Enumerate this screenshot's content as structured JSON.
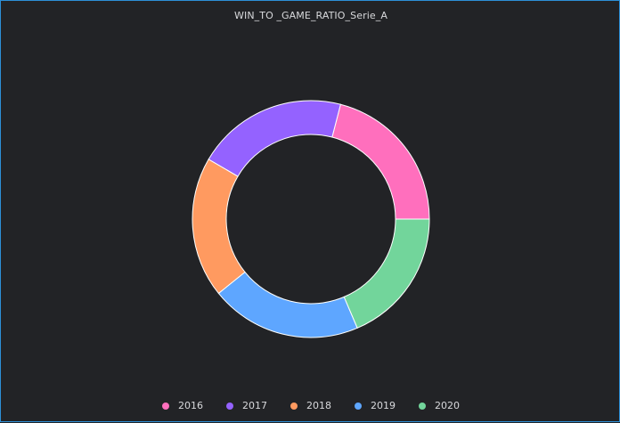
{
  "chart_data": {
    "type": "pie",
    "title": "WIN_TO _GAME_RATIO_Serie_A",
    "variant": "donut",
    "categories": [
      "2016",
      "2017",
      "2018",
      "2019",
      "2020"
    ],
    "values": [
      0.608,
      0.598,
      0.557,
      0.598,
      0.539
    ],
    "colors": [
      "#ff6fbd",
      "#9462ff",
      "#ff9a60",
      "#5ea6ff",
      "#72d59b"
    ],
    "legend_position": "bottom"
  }
}
